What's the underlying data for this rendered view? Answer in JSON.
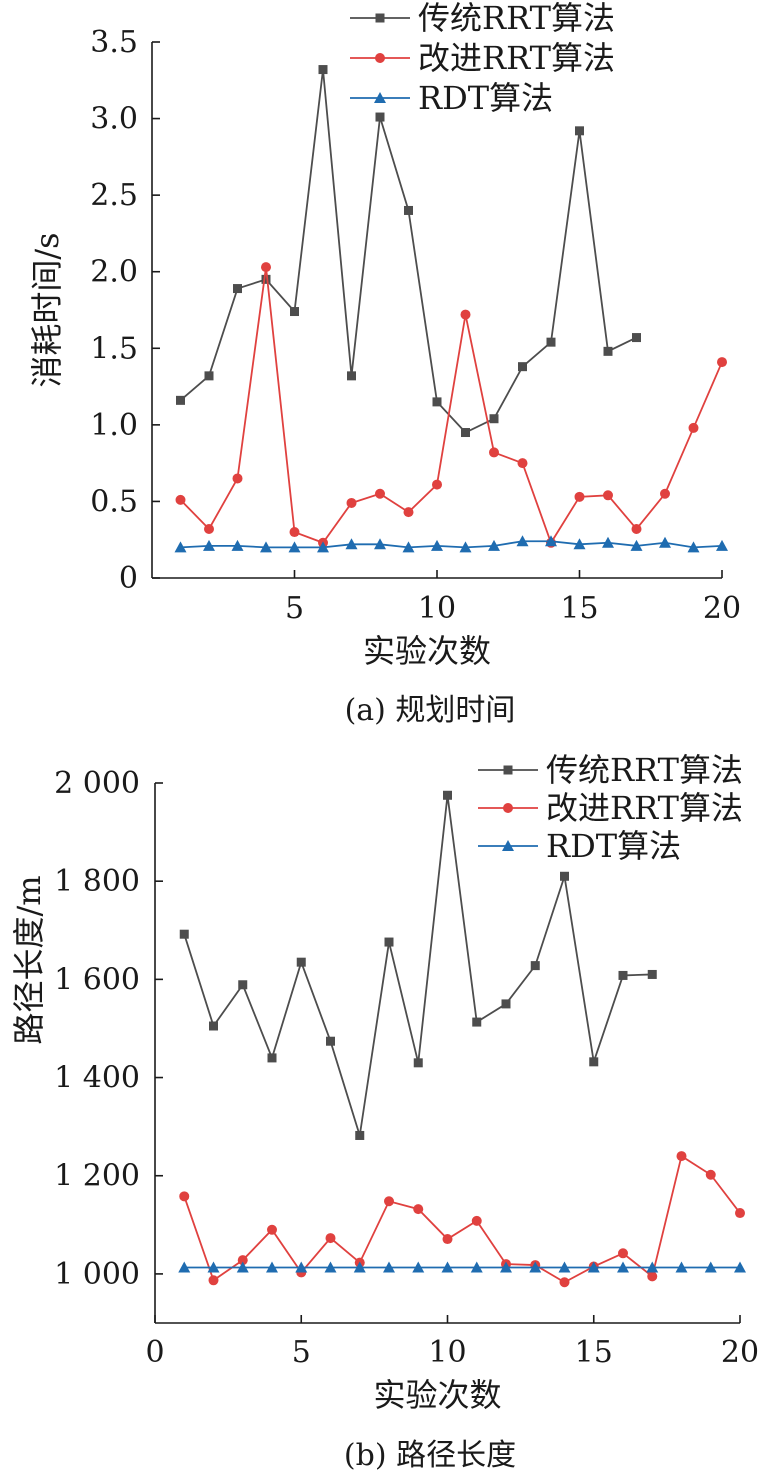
{
  "colors": {
    "traditional": "#4d4d4d",
    "improved": "#e0413f",
    "rdt": "#1f6cb0"
  },
  "chart_data": [
    {
      "type": "line",
      "caption": "(a) 规划时间",
      "xlabel": "实验次数",
      "ylabel": "消耗时间/s",
      "xlim": [
        0,
        20
      ],
      "ylim": [
        0,
        3.5
      ],
      "xticks": [
        5,
        10,
        15,
        20
      ],
      "xtick_labels": [
        "5",
        "10",
        "15",
        "20"
      ],
      "yticks": [
        0,
        0.5,
        1.0,
        1.5,
        2.0,
        2.5,
        3.0,
        3.5
      ],
      "ytick_labels": [
        "0",
        "0.5",
        "1.0",
        "1.5",
        "2.0",
        "2.5",
        "3.0",
        "3.5"
      ],
      "grid": false,
      "legend_position": "top-right",
      "series": [
        {
          "name": "传统RRT算法",
          "color": "#4d4d4d",
          "marker": "square",
          "x": [
            1,
            2,
            3,
            4,
            5,
            6,
            7,
            8,
            9,
            10,
            11,
            12,
            13,
            14,
            15,
            16,
            17
          ],
          "values": [
            1.16,
            1.32,
            1.89,
            1.95,
            1.74,
            3.32,
            1.32,
            3.01,
            2.4,
            1.15,
            0.95,
            1.04,
            1.38,
            1.54,
            2.92,
            1.48,
            1.57
          ]
        },
        {
          "name": "改进RRT算法",
          "color": "#e0413f",
          "marker": "circle",
          "x": [
            1,
            2,
            3,
            4,
            5,
            6,
            7,
            8,
            9,
            10,
            11,
            12,
            13,
            14,
            15,
            16,
            17,
            18,
            19,
            20
          ],
          "values": [
            0.51,
            0.32,
            0.65,
            2.03,
            0.3,
            0.23,
            0.49,
            0.55,
            0.43,
            0.61,
            1.72,
            0.82,
            0.75,
            0.23,
            0.53,
            0.54,
            0.32,
            0.55,
            0.98,
            1.41
          ]
        },
        {
          "name": "RDT算法",
          "color": "#1f6cb0",
          "marker": "triangle",
          "x": [
            1,
            2,
            3,
            4,
            5,
            6,
            7,
            8,
            9,
            10,
            11,
            12,
            13,
            14,
            15,
            16,
            17,
            18,
            19,
            20
          ],
          "values": [
            0.2,
            0.21,
            0.21,
            0.2,
            0.2,
            0.2,
            0.22,
            0.22,
            0.2,
            0.21,
            0.2,
            0.21,
            0.24,
            0.24,
            0.22,
            0.23,
            0.21,
            0.23,
            0.2,
            0.21
          ]
        }
      ]
    },
    {
      "type": "line",
      "caption": "(b) 路径长度",
      "xlabel": "实验次数",
      "ylabel": "路径长度/m",
      "xlim": [
        0,
        20
      ],
      "ylim": [
        900,
        2000
      ],
      "xticks": [
        0,
        5,
        10,
        15,
        20
      ],
      "xtick_labels": [
        "0",
        "5",
        "10",
        "15",
        "20"
      ],
      "yticks": [
        1000,
        1200,
        1400,
        1600,
        1800,
        2000
      ],
      "ytick_labels": [
        "1 000",
        "1 200",
        "1 400",
        "1 600",
        "1 800",
        "2 000"
      ],
      "grid": false,
      "legend_position": "top-right",
      "series": [
        {
          "name": "传统RRT算法",
          "color": "#4d4d4d",
          "marker": "square",
          "x": [
            1,
            2,
            3,
            4,
            5,
            6,
            7,
            8,
            9,
            10,
            11,
            12,
            13,
            14,
            15,
            16,
            17
          ],
          "values": [
            1692,
            1505,
            1589,
            1440,
            1635,
            1474,
            1282,
            1676,
            1430,
            1975,
            1513,
            1550,
            1628,
            1810,
            1432,
            1608,
            1610
          ]
        },
        {
          "name": "改进RRT算法",
          "color": "#e0413f",
          "marker": "circle",
          "x": [
            1,
            2,
            3,
            4,
            5,
            6,
            7,
            8,
            9,
            10,
            11,
            12,
            13,
            14,
            15,
            16,
            17,
            18,
            19,
            20
          ],
          "values": [
            1158,
            987,
            1028,
            1090,
            1003,
            1073,
            1023,
            1148,
            1132,
            1071,
            1108,
            1020,
            1018,
            983,
            1015,
            1042,
            995,
            1240,
            1202,
            1124
          ]
        },
        {
          "name": "RDT算法",
          "color": "#1f6cb0",
          "marker": "triangle",
          "x": [
            1,
            2,
            3,
            4,
            5,
            6,
            7,
            8,
            9,
            10,
            11,
            12,
            13,
            14,
            15,
            16,
            17,
            18,
            19,
            20
          ],
          "values": [
            1013,
            1013,
            1013,
            1013,
            1013,
            1013,
            1013,
            1013,
            1013,
            1013,
            1013,
            1013,
            1013,
            1013,
            1013,
            1013,
            1013,
            1013,
            1013,
            1013
          ]
        }
      ]
    }
  ]
}
